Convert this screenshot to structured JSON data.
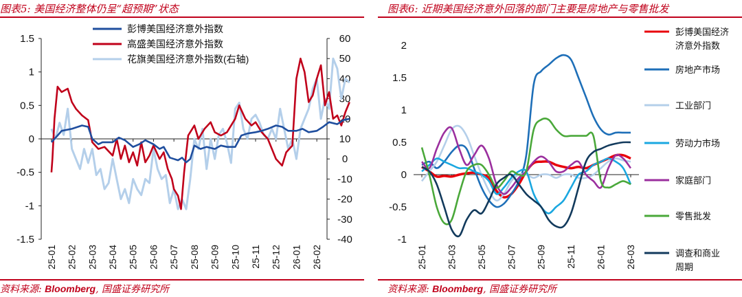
{
  "left": {
    "title": "图表5:  美国经济整体仍呈“超预期”状态",
    "source_prefix": "资料来源:",
    "source_bold": "Bloomberg",
    "source_suffix": ", 国盛证券研究所",
    "chart_data": {
      "type": "line",
      "title": "",
      "xlabel": "",
      "ylabel": "",
      "x_ticks": [
        "25-01",
        "25-02",
        "25-03",
        "25-04",
        "25-05",
        "25-06",
        "25-07",
        "25-08",
        "25-09",
        "25-10",
        "25-11",
        "25-12",
        "26-01",
        "26-02"
      ],
      "ylim": [
        -1.5,
        1.5
      ],
      "y_ticks": [
        "1.5",
        "1",
        "0.5",
        "0",
        "-0.5",
        "-1",
        "-1.5"
      ],
      "y2lim": [
        -40,
        60
      ],
      "y2_ticks": [
        "60",
        "50",
        "40",
        "30",
        "20",
        "10",
        "0",
        "-10",
        "-20",
        "-30",
        "-40"
      ],
      "legend_position": "top",
      "series": [
        {
          "name": "彭博美国经济意外指数",
          "color": "#1f4e9e",
          "axis": "left",
          "x": [
            0,
            0.3,
            0.5,
            1,
            1.5,
            1.8,
            2,
            2.3,
            2.5,
            3,
            3.3,
            3.6,
            4,
            4.3,
            4.6,
            5,
            5.3,
            5.5,
            5.8,
            6,
            6.2,
            6.4,
            6.6,
            6.8,
            7,
            7.3,
            7.6,
            8,
            8.3,
            8.6,
            9,
            9.3,
            9.6,
            10,
            10.3,
            10.6,
            11,
            11.3,
            11.6,
            12,
            12.3,
            12.6,
            13,
            13.3,
            13.6,
            14,
            14.3,
            14.6
          ],
          "y": [
            -0.05,
            0.05,
            0.12,
            0.15,
            0.2,
            0.18,
            0.0,
            -0.08,
            -0.05,
            -0.05,
            0.02,
            -0.02,
            -0.12,
            -0.08,
            -0.02,
            -0.08,
            -0.15,
            -0.12,
            -0.28,
            -0.3,
            -0.32,
            -0.28,
            -0.35,
            -0.3,
            -0.1,
            -0.15,
            -0.12,
            -0.15,
            -0.1,
            -0.12,
            -0.12,
            0.05,
            0.08,
            0.1,
            0.12,
            0.15,
            0.2,
            0.18,
            0.12,
            0.12,
            0.15,
            0.1,
            0.12,
            0.18,
            0.25,
            0.22,
            0.28,
            0.3
          ]
        },
        {
          "name": "高盛美国经济意外指数",
          "color": "#c0001a",
          "axis": "left",
          "x": [
            0,
            0.05,
            0.15,
            0.3,
            0.5,
            0.8,
            1,
            1.2,
            1.5,
            1.8,
            2,
            2.3,
            2.6,
            3,
            3.2,
            3.4,
            3.6,
            3.8,
            4,
            4.2,
            4.4,
            4.6,
            4.8,
            5,
            5.3,
            5.5,
            5.7,
            5.9,
            6,
            6.2,
            6.35,
            6.5,
            6.7,
            6.9,
            7,
            7.2,
            7.5,
            7.8,
            8,
            8.3,
            8.6,
            9,
            9.2,
            9.5,
            9.8,
            10,
            10.3,
            10.6,
            11,
            11.3,
            11.5,
            11.8,
            12,
            12.2,
            12.4,
            12.6,
            12.8,
            13,
            13.2,
            13.4,
            13.6,
            13.8,
            14,
            14.2,
            14.4,
            14.6
          ],
          "y": [
            -0.5,
            -0.3,
            0.3,
            0.78,
            0.7,
            0.75,
            0.55,
            0.45,
            0.35,
            0.28,
            -0.05,
            -0.15,
            -0.12,
            -0.25,
            0.0,
            -0.3,
            -0.1,
            -0.35,
            -0.2,
            -0.4,
            -0.05,
            -0.35,
            -0.25,
            -0.1,
            -0.3,
            -0.2,
            -0.45,
            -0.6,
            -0.75,
            -0.85,
            -1.05,
            -0.5,
            0.05,
            0.15,
            0.2,
            0.0,
            0.15,
            0.25,
            0.1,
            0.05,
            0.1,
            0.3,
            0.5,
            0.3,
            0.2,
            0.25,
            0.1,
            0.0,
            -0.3,
            -0.4,
            -0.2,
            -0.1,
            0.9,
            1.2,
            1.0,
            0.55,
            0.65,
            0.9,
            1.1,
            0.5,
            0.7,
            0.3,
            0.35,
            0.2,
            0.4,
            0.55
          ]
        },
        {
          "name": "花旗美国经济意外指数(右轴)",
          "color": "#b4cfea",
          "axis": "right",
          "x": [
            0,
            0.2,
            0.4,
            0.6,
            0.8,
            1,
            1.2,
            1.4,
            1.6,
            1.8,
            2,
            2.2,
            2.4,
            2.6,
            2.8,
            3,
            3.2,
            3.4,
            3.6,
            3.8,
            4,
            4.2,
            4.4,
            4.6,
            4.8,
            5,
            5.2,
            5.4,
            5.6,
            5.8,
            6,
            6.2,
            6.4,
            6.6,
            6.8,
            7,
            7.2,
            7.4,
            7.6,
            7.8,
            8,
            8.2,
            8.4,
            8.6,
            8.8,
            9,
            9.2,
            9.4,
            9.6,
            9.8,
            10,
            10.2,
            10.4,
            10.6,
            10.8,
            11,
            11.2,
            11.4,
            11.6,
            11.8,
            12,
            12.2,
            12.4,
            12.6,
            12.8,
            13,
            13.2,
            13.4,
            13.6,
            13.8,
            14,
            14.2,
            14.4,
            14.6
          ],
          "y": [
            15,
            10,
            18,
            12,
            25,
            5,
            0,
            -5,
            5,
            -2,
            5,
            -8,
            -5,
            -15,
            -12,
            0,
            -10,
            -20,
            -15,
            -22,
            -10,
            -15,
            -18,
            -10,
            -12,
            5,
            -5,
            -10,
            -8,
            -22,
            -15,
            -25,
            -20,
            -25,
            -10,
            10,
            5,
            15,
            -5,
            10,
            0,
            12,
            15,
            8,
            -2,
            25,
            28,
            15,
            10,
            20,
            22,
            18,
            12,
            10,
            15,
            10,
            25,
            15,
            5,
            10,
            0,
            15,
            20,
            25,
            35,
            40,
            20,
            30,
            25,
            50,
            45,
            30,
            40,
            38
          ]
        }
      ]
    }
  },
  "right": {
    "title": "图表6:  近期美国经济意外回落的部门主要是房地产与零售批发",
    "source_prefix": "资料来源:",
    "source_bold": "Bloomberg",
    "source_suffix": ", 国盛证券研究所",
    "chart_data": {
      "type": "line",
      "title": "",
      "xlabel": "",
      "ylabel": "",
      "x_ticks": [
        "25-01",
        "25-03",
        "25-05",
        "25-07",
        "25-09",
        "25-11",
        "26-01",
        "26-03"
      ],
      "ylim": [
        -1,
        2
      ],
      "y_ticks": [
        "2",
        "1.5",
        "1",
        "0.5",
        "0",
        "-0.5",
        "-1"
      ],
      "legend_position": "right",
      "series": [
        {
          "name": "彭博美国经济\n济意外指数",
          "color": "#e8000b",
          "x": [
            0,
            0.5,
            1,
            1.5,
            2,
            2.5,
            3,
            3.5,
            4,
            4.5,
            5,
            5.5,
            6,
            6.5,
            7,
            7.5,
            8,
            8.5,
            9,
            9.5,
            10,
            10.5,
            11,
            11.5,
            12,
            12.5,
            13,
            13.5,
            14
          ],
          "y": [
            0.12,
            0.05,
            -0.03,
            -0.02,
            -0.03,
            0.0,
            0.02,
            0.03,
            0.0,
            -0.05,
            -0.25,
            -0.35,
            -0.3,
            -0.15,
            0.05,
            0.18,
            0.2,
            0.2,
            0.15,
            0.12,
            0.1,
            0.12,
            0.1,
            0.15,
            0.2,
            0.25,
            0.3,
            0.3,
            0.25
          ]
        },
        {
          "name": "房地产市场",
          "color": "#1e6fb8",
          "x": [
            0,
            0.5,
            1,
            1.5,
            2,
            2.5,
            3,
            3.5,
            4,
            4.5,
            5,
            5.5,
            6,
            6.5,
            7,
            7.5,
            8,
            8.5,
            9,
            9.5,
            10,
            10.5,
            11,
            11.5,
            12,
            12.5,
            13,
            13.5,
            14
          ],
          "y": [
            0.15,
            0.2,
            0.1,
            0.2,
            0.35,
            0.45,
            0.4,
            0.1,
            -0.2,
            -0.4,
            -0.5,
            -0.45,
            -0.3,
            -0.1,
            0.3,
            1.4,
            1.6,
            1.7,
            1.8,
            1.85,
            1.78,
            1.5,
            1.2,
            0.9,
            0.7,
            0.62,
            0.65,
            0.65,
            0.65
          ]
        },
        {
          "name": "工业部门",
          "color": "#b4cfea",
          "x": [
            0,
            0.5,
            1,
            1.5,
            2,
            2.5,
            3,
            3.5,
            4,
            4.5,
            5,
            5.5,
            6,
            6.5,
            7,
            7.5,
            8,
            8.5,
            9,
            9.5,
            10,
            10.5,
            11,
            11.5,
            12,
            12.5,
            13,
            13.5,
            14
          ],
          "y": [
            -0.1,
            0.05,
            0.2,
            0.45,
            0.7,
            0.75,
            0.6,
            0.3,
            0.0,
            -0.25,
            -0.4,
            -0.3,
            -0.1,
            0.0,
            0.0,
            -0.05,
            0.0,
            0.0,
            -0.05,
            0.0,
            0.0,
            -0.05,
            -0.05,
            0.0,
            0.1,
            0.2,
            0.25,
            0.22,
            0.2
          ]
        },
        {
          "name": "劳动力市场",
          "color": "#1aa7e0",
          "x": [
            0,
            0.5,
            1,
            1.5,
            2,
            2.5,
            3,
            3.5,
            4,
            4.5,
            5,
            5.5,
            6,
            6.5,
            7,
            7.5,
            8,
            8.5,
            9,
            9.5,
            10,
            10.5,
            11,
            11.5,
            12,
            12.5,
            13,
            13.5,
            14
          ],
          "y": [
            0.05,
            0.15,
            0.25,
            0.2,
            0.15,
            0.1,
            0.1,
            0.05,
            0.0,
            -0.1,
            -0.3,
            -0.2,
            -0.05,
            0.05,
            0.05,
            -0.3,
            -0.5,
            -0.6,
            -0.5,
            -0.4,
            -0.2,
            0.0,
            0.05,
            0.15,
            0.2,
            0.25,
            0.2,
            0.1,
            -0.15
          ]
        },
        {
          "name": "家庭部门",
          "color": "#9b2f9e",
          "x": [
            0,
            0.5,
            1,
            1.5,
            2,
            2.5,
            3,
            3.5,
            4,
            4.5,
            5,
            5.5,
            6,
            6.5,
            7,
            7.5,
            8,
            8.5,
            9,
            9.5,
            10,
            10.5,
            11,
            11.5,
            12,
            12.5,
            13,
            13.5,
            14
          ],
          "y": [
            0.2,
            0.1,
            0.4,
            0.65,
            0.72,
            0.4,
            0.15,
            0.3,
            0.45,
            0.25,
            -0.15,
            -0.3,
            -0.2,
            -0.05,
            0.05,
            0.2,
            0.28,
            0.2,
            0.05,
            0.05,
            0.15,
            0.2,
            0.0,
            -0.1,
            -0.2,
            0.1,
            0.3,
            0.25,
            0.1
          ]
        },
        {
          "name": "零售批发",
          "color": "#4aa83a",
          "x": [
            0,
            0.5,
            1,
            1.5,
            2,
            2.5,
            3,
            3.5,
            4,
            4.5,
            5,
            5.5,
            6,
            6.5,
            7,
            7.5,
            8,
            8.5,
            9,
            9.5,
            10,
            10.5,
            11,
            11.5,
            12,
            12.5,
            13,
            13.5,
            14
          ],
          "y": [
            0.42,
            0.0,
            -0.5,
            -0.75,
            -0.7,
            -0.3,
            0.05,
            0.15,
            0.15,
            0.0,
            -0.2,
            -0.1,
            0.05,
            0.0,
            0.05,
            0.7,
            0.85,
            0.85,
            0.7,
            0.6,
            0.6,
            0.6,
            0.6,
            0.6,
            -0.1,
            -0.2,
            -0.15,
            -0.1,
            -0.15
          ]
        },
        {
          "name": "调查和商业\n周期",
          "color": "#123a5c",
          "x": [
            0,
            0.5,
            1,
            1.5,
            2,
            2.5,
            3,
            3.5,
            4,
            4.5,
            5,
            5.5,
            6,
            6.5,
            7,
            7.5,
            8,
            8.5,
            9,
            9.5,
            10,
            10.5,
            11,
            11.5,
            12,
            12.5,
            13,
            13.5,
            14
          ],
          "y": [
            0.12,
            0.05,
            -0.15,
            -0.5,
            -0.85,
            -0.95,
            -0.7,
            -0.55,
            -0.6,
            -0.4,
            -0.15,
            -0.05,
            0.0,
            -0.15,
            -0.3,
            -0.4,
            -0.5,
            -0.7,
            -0.8,
            -0.8,
            -0.6,
            -0.2,
            0.2,
            0.35,
            0.4,
            0.45,
            0.48,
            0.5,
            0.5
          ]
        }
      ]
    }
  }
}
